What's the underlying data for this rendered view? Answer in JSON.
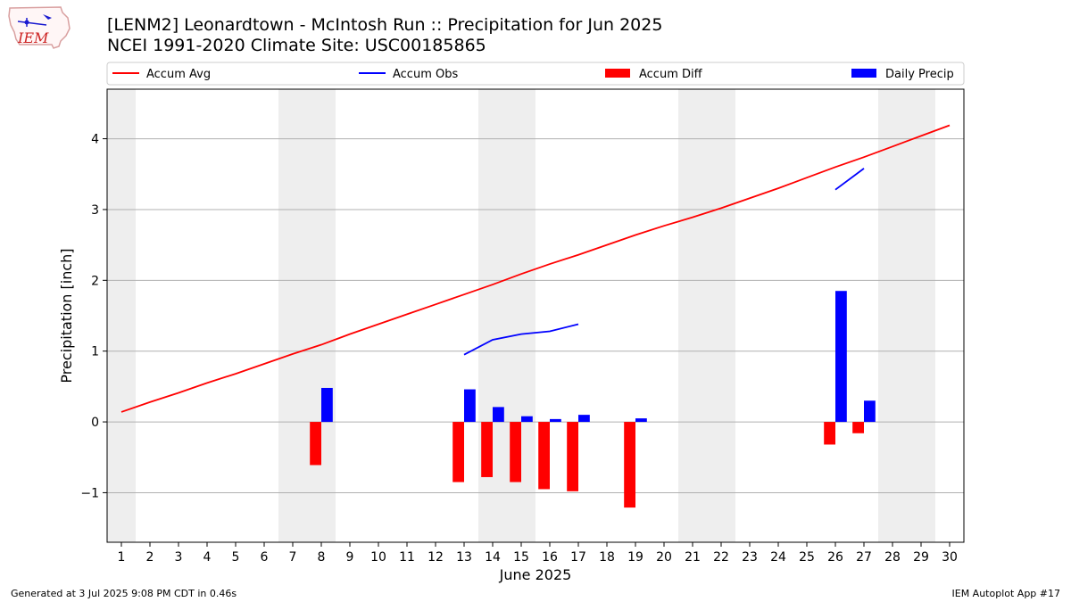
{
  "header": {
    "title_line1": "[LENM2] Leonardtown - McIntosh Run :: Precipitation for Jun 2025",
    "title_line2": "NCEI 1991-2020 Climate Site: USC00185865"
  },
  "logo": {
    "text": "IEM"
  },
  "footer": {
    "generated": "Generated at 3 Jul 2025 9:08 PM CDT in 0.46s",
    "app": "IEM Autoplot App #17"
  },
  "colors": {
    "avg": "#ff0000",
    "obs": "#0000ff",
    "diff": "#ff0000",
    "daily": "#0000ff",
    "weekend": "#eeeeee",
    "grid": "#b0b0b0"
  },
  "chart_data": {
    "type": "bar",
    "title": "[LENM2] Leonardtown - McIntosh Run :: Precipitation for Jun 2025",
    "subtitle": "NCEI 1991-2020 Climate Site: USC00185865",
    "xlabel": "June 2025",
    "ylabel": "Precipitation [inch]",
    "xlim": [
      0.5,
      30.5
    ],
    "ylim": [
      -1.7,
      4.7
    ],
    "yticks": [
      -1,
      0,
      1,
      2,
      3,
      4
    ],
    "ytick_labels": [
      "−1",
      "0",
      "1",
      "2",
      "3",
      "4"
    ],
    "x": [
      1,
      2,
      3,
      4,
      5,
      6,
      7,
      8,
      9,
      10,
      11,
      12,
      13,
      14,
      15,
      16,
      17,
      18,
      19,
      20,
      21,
      22,
      23,
      24,
      25,
      26,
      27,
      28,
      29,
      30
    ],
    "legend": {
      "placement": "top",
      "entries": [
        {
          "label": "Accum Avg",
          "kind": "line",
          "color": "#ff0000"
        },
        {
          "label": "Accum Obs",
          "kind": "line",
          "color": "#0000ff"
        },
        {
          "label": "Accum Diff",
          "kind": "bar",
          "color": "#ff0000"
        },
        {
          "label": "Daily Precip",
          "kind": "bar",
          "color": "#0000ff"
        }
      ]
    },
    "weekend_days": [
      1,
      7,
      8,
      14,
      15,
      21,
      22,
      28,
      29
    ],
    "series": [
      {
        "name": "Accum Avg",
        "type": "line",
        "values": [
          0.14,
          0.28,
          0.41,
          0.55,
          0.68,
          0.82,
          0.96,
          1.09,
          1.24,
          1.38,
          1.52,
          1.66,
          1.8,
          1.94,
          2.09,
          2.23,
          2.36,
          2.5,
          2.64,
          2.77,
          2.89,
          3.02,
          3.16,
          3.3,
          3.45,
          3.6,
          3.74,
          3.89,
          4.04,
          4.19
        ]
      },
      {
        "name": "Accum Obs",
        "type": "line",
        "values": [
          null,
          null,
          null,
          null,
          null,
          null,
          null,
          null,
          null,
          null,
          null,
          null,
          0.95,
          1.16,
          1.24,
          1.28,
          1.38,
          null,
          null,
          null,
          null,
          null,
          null,
          null,
          null,
          3.28,
          3.58,
          null,
          null,
          null
        ]
      },
      {
        "name": "Accum Diff",
        "type": "bar",
        "values": [
          null,
          null,
          null,
          null,
          null,
          null,
          null,
          -0.61,
          null,
          null,
          null,
          null,
          -0.85,
          -0.78,
          -0.85,
          -0.95,
          -0.98,
          null,
          -1.21,
          null,
          null,
          null,
          null,
          null,
          null,
          -0.32,
          -0.16,
          null,
          null,
          null
        ]
      },
      {
        "name": "Daily Precip",
        "type": "bar",
        "values": [
          null,
          null,
          null,
          null,
          null,
          null,
          null,
          0.48,
          null,
          null,
          null,
          null,
          0.46,
          0.21,
          0.08,
          0.04,
          0.1,
          null,
          0.05,
          null,
          null,
          null,
          null,
          null,
          null,
          1.85,
          0.3,
          null,
          null,
          null
        ]
      }
    ]
  }
}
